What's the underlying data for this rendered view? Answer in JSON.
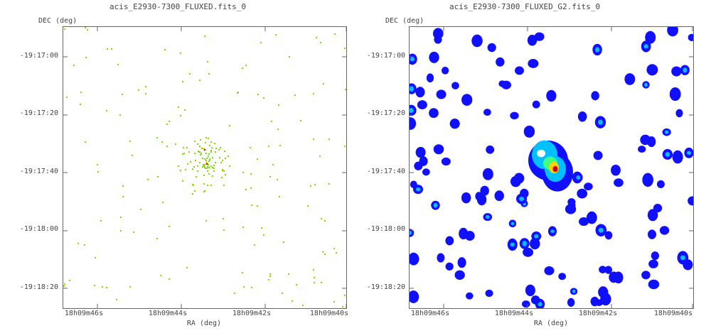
{
  "panels": [
    {
      "title": "acis_E2930-7300_FLUXED.fits_0",
      "ylabel": "DEC (deg)",
      "xlabel": "RA (deg)",
      "yticks": [
        "-19:17:00",
        "-19:17:20",
        "-19:17:40",
        "-19:18:00",
        "-19:18:20"
      ],
      "xticks": [
        "18h09m46s",
        "18h09m44s",
        "18h09m42s",
        "18h09m40s"
      ]
    },
    {
      "title": "acis_E2930-7300_FLUXED_G2.fits_0",
      "ylabel": "DEC (deg)",
      "xlabel": "RA (deg)",
      "yticks": [
        "-19:17:00",
        "-19:17:20",
        "-19:17:40",
        "-19:18:00",
        "-19:18:20"
      ],
      "xticks": [
        "18h09m46s",
        "18h09m44s",
        "18h09m42s",
        "18h09m40s"
      ]
    }
  ],
  "colors": {
    "sparse_pixel": "#7fe000",
    "blob_outer": "#1010ff",
    "blob_mid": "#00c0ff",
    "blob_core": "#ffd000",
    "blob_peak": "#cc0000",
    "axis": "#666666"
  }
}
